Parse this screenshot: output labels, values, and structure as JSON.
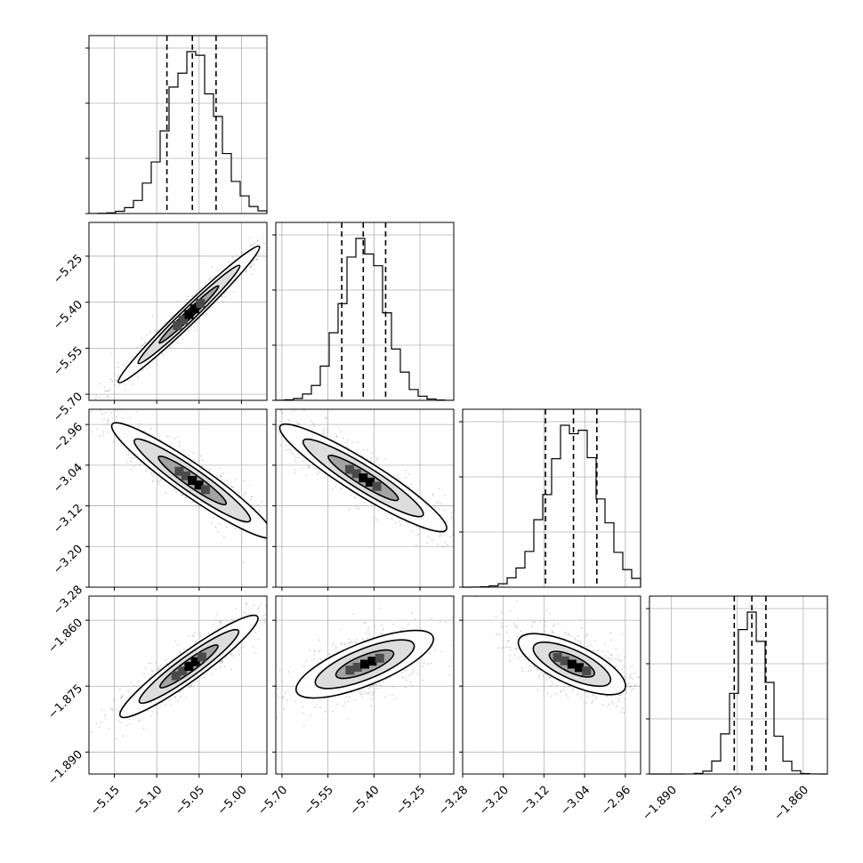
{
  "chart_data": {
    "type": "corner",
    "variables": [
      {
        "range": [
          -5.18,
          -4.97
        ],
        "ticks": [
          -5.15,
          -5.1,
          -5.05,
          -5.0
        ],
        "tick_labels": [
          "−5.15",
          "−5.10",
          "−5.05",
          "−5.00"
        ],
        "quantiles": [
          -5.088,
          -5.058,
          -5.03
        ],
        "mode": -5.055
      },
      {
        "range": [
          -5.72,
          -5.14
        ],
        "ticks": [
          -5.7,
          -5.55,
          -5.4,
          -5.25
        ],
        "tick_labels": [
          "−5.70",
          "−5.55",
          "−5.40",
          "−5.25"
        ],
        "quantiles": [
          -5.505,
          -5.435,
          -5.362
        ],
        "mode": -5.4
      },
      {
        "range": [
          -3.28,
          -2.93
        ],
        "ticks": [
          -3.28,
          -3.2,
          -3.12,
          -3.04,
          -2.96
        ],
        "tick_labels": [
          "−3.28",
          "−3.20",
          "−3.12",
          "−3.04",
          "−2.96"
        ],
        "quantiles": [
          -3.117,
          -3.062,
          -3.016
        ],
        "mode": -3.045
      },
      {
        "range": [
          -1.895,
          -1.8545
        ],
        "ticks": [
          -1.89,
          -1.875,
          -1.86
        ],
        "tick_labels": [
          "−1.890",
          "−1.875",
          "−1.860"
        ],
        "quantiles": [
          -1.8757,
          -1.8717,
          -1.8685
        ],
        "mode": -1.8705
      }
    ],
    "pairs": [
      {
        "row": 1,
        "col": 0,
        "center": [
          -5.062,
          -5.44
        ],
        "axes": [
          0.135,
          0.018
        ],
        "angle_deg": 44
      },
      {
        "row": 2,
        "col": 0,
        "center": [
          -5.058,
          -3.07
        ],
        "axes": [
          0.123,
          0.031
        ],
        "angle_deg": -35
      },
      {
        "row": 2,
        "col": 1,
        "center": [
          -5.435,
          -3.065
        ],
        "axes": [
          0.345,
          0.033
        ],
        "angle_deg": -32
      },
      {
        "row": 3,
        "col": 0,
        "center": [
          -5.062,
          -1.8705
        ],
        "axes": [
          0.1,
          0.0032
        ],
        "angle_deg": 36
      },
      {
        "row": 3,
        "col": 1,
        "center": [
          -5.43,
          -1.87
        ],
        "axes": [
          0.24,
          0.0048
        ],
        "angle_deg": 22
      },
      {
        "row": 3,
        "col": 2,
        "center": [
          -3.065,
          -1.87
        ],
        "axes": [
          0.115,
          0.0045
        ],
        "angle_deg": -25
      }
    ],
    "grid": true
  }
}
